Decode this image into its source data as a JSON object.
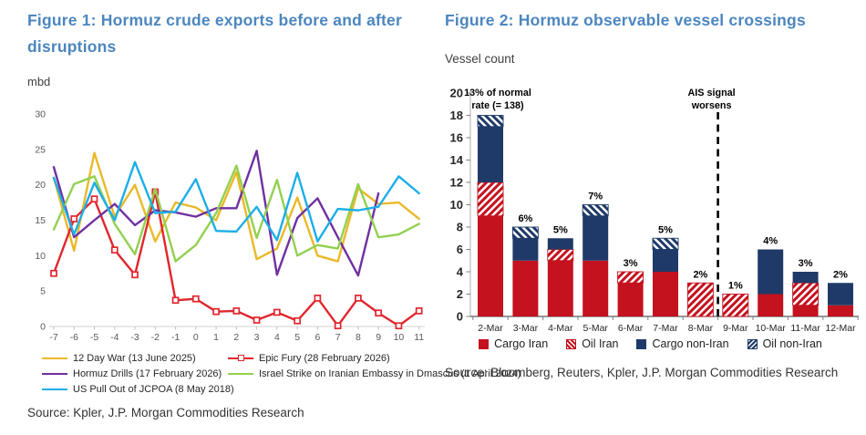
{
  "theme": {
    "title_color": "#4c86bf",
    "text_dark": "#1f1f1f",
    "axis_gray": "#595959"
  },
  "figure1": {
    "title": "Figure 1: Hormuz crude exports before and after disruptions",
    "unit_label": "mbd",
    "source": "Source: Kpler, J.P. Morgan Commodities Research"
  },
  "figure2": {
    "title": "Figure 2: Hormuz observable vessel crossings",
    "unit_label": "Vessel count",
    "source": "Source: Bloomberg, Reuters, Kpler, J.P. Morgan Commodities Research"
  },
  "chart_data": [
    {
      "type": "line",
      "title": "Hormuz crude exports before and after disruptions",
      "ylabel": "mbd",
      "ylim": [
        0,
        30
      ],
      "yticks": [
        0,
        5,
        10,
        15,
        20,
        25,
        30
      ],
      "x": [
        -7,
        -6,
        -5,
        -4,
        -3,
        -2,
        -1,
        0,
        1,
        2,
        3,
        4,
        5,
        6,
        7,
        8,
        9,
        10,
        11
      ],
      "grid": false,
      "legend_position": "bottom",
      "series": [
        {
          "name": "12 Day War (13 June 2025)",
          "color": "#eab928",
          "marker": "none",
          "values": [
            21,
            10.7,
            24.5,
            15.5,
            20,
            12,
            17.5,
            16.8,
            15,
            21.8,
            9.5,
            11,
            18.2,
            10,
            9.2,
            19.5,
            17.3,
            17.5,
            15.2
          ]
        },
        {
          "name": "Epic Fury (28 February 2026)",
          "color": "#e1262d",
          "marker": "square-open",
          "values": [
            7.5,
            15.2,
            18,
            10.8,
            7.3,
            19,
            3.7,
            3.9,
            2.1,
            2.2,
            0.9,
            2,
            0.8,
            4,
            0.1,
            4,
            1.9,
            0.1,
            2.2
          ]
        },
        {
          "name": "Hormuz Drills (17 February 2026)",
          "color": "#7030a0",
          "marker": "none",
          "values": [
            22.5,
            12.6,
            15,
            17.3,
            14.3,
            16.4,
            16.1,
            15.5,
            16.7,
            16.7,
            24.8,
            7.3,
            15.3,
            18.1,
            12.6,
            7.2,
            18.8,
            null,
            null
          ]
        },
        {
          "name": "Israel Strike on Iranian Embassy in Dmascus (1 April 2024)",
          "color": "#92d050",
          "marker": "none",
          "values": [
            13.7,
            20.1,
            21.2,
            14.5,
            10.2,
            19.4,
            9.2,
            11.5,
            16,
            22.7,
            12.5,
            20.7,
            10,
            11.5,
            11,
            20.1,
            12.6,
            13,
            14.5
          ]
        },
        {
          "name": "US Pull Out of JCPOA (8 May 2018)",
          "color": "#1caee8",
          "marker": "none",
          "values": [
            21,
            13,
            20.3,
            15,
            23.2,
            16,
            16.2,
            20.8,
            13.5,
            13.4,
            16.9,
            12.2,
            21.7,
            12,
            16.6,
            16.4,
            16.9,
            21.2,
            18.8
          ]
        }
      ]
    },
    {
      "type": "bar",
      "subtype": "stacked",
      "title": "Hormuz observable vessel crossings",
      "ylabel": "Vessel count",
      "ylim": [
        0,
        20
      ],
      "yticks": [
        0,
        2,
        4,
        6,
        8,
        10,
        12,
        14,
        16,
        18,
        20
      ],
      "categories": [
        "2-Mar",
        "3-Mar",
        "4-Mar",
        "5-Mar",
        "6-Mar",
        "7-Mar",
        "8-Mar",
        "9-Mar",
        "10-Mar",
        "11-Mar",
        "12-Mar"
      ],
      "series": [
        {
          "name": "Cargo Iran",
          "color": "#c4121f",
          "pattern": "solid",
          "values": [
            9,
            5,
            5,
            5,
            3,
            4,
            0,
            0,
            2,
            1,
            1
          ]
        },
        {
          "name": "Oil Iran",
          "color": "#c4121f",
          "pattern": "hatch-fwd",
          "values": [
            3,
            0,
            1,
            0,
            1,
            0,
            3,
            2,
            0,
            2,
            0
          ]
        },
        {
          "name": "Cargo non-Iran",
          "color": "#1f3a68",
          "pattern": "solid",
          "values": [
            5,
            2,
            1,
            4,
            0,
            2,
            0,
            0,
            4,
            1,
            2
          ]
        },
        {
          "name": "Oil non-Iran",
          "color": "#1f3a68",
          "pattern": "hatch-back",
          "values": [
            1,
            1,
            0,
            1,
            0,
            1,
            0,
            0,
            0,
            0,
            0
          ]
        }
      ],
      "totals": [
        18,
        8,
        7,
        10,
        4,
        7,
        3,
        2,
        6,
        4,
        3
      ],
      "bar_labels": [
        "",
        "6%",
        "5%",
        "7%",
        "3%",
        "5%",
        "2%",
        "1%",
        "4%",
        "3%",
        "2%"
      ],
      "annotations": [
        {
          "text": "13% of normal rate (= 138)",
          "lines": [
            "13% of normal",
            "rate (= 138)"
          ],
          "anchor": "first-bar"
        },
        {
          "text": "AIS signal worsens",
          "lines": [
            "AIS signal",
            "worsens"
          ],
          "anchor": "divider"
        }
      ],
      "divider_after": "8-Mar",
      "legend_position": "bottom"
    }
  ]
}
